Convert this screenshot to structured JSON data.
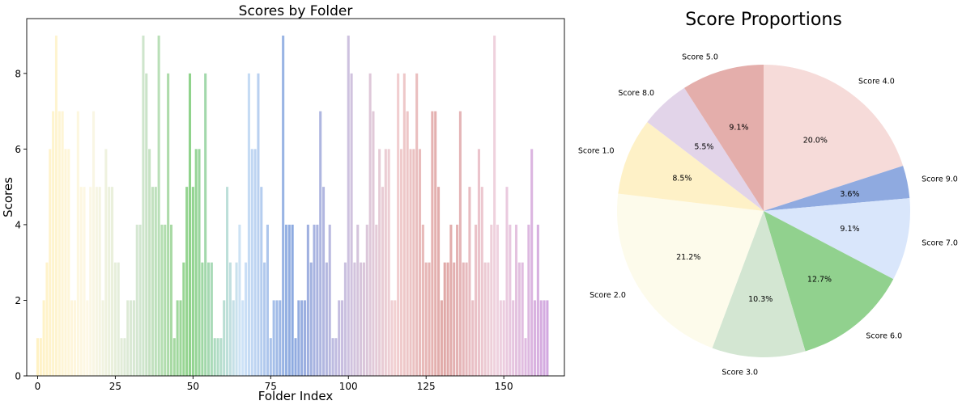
{
  "chart_data": [
    {
      "type": "bar",
      "title": "Scores by Folder",
      "xlabel": "Folder Index",
      "ylabel": "Scores",
      "xlim": [
        -3.5,
        169.5
      ],
      "ylim": [
        0,
        9.45
      ],
      "xticks": [
        0,
        25,
        50,
        75,
        100,
        125,
        150
      ],
      "yticks": [
        0,
        2,
        4,
        6,
        8
      ],
      "grid": false,
      "x_start": 0,
      "values": [
        1,
        1,
        2,
        3,
        6,
        7,
        9,
        7,
        7,
        6,
        6,
        2,
        2,
        7,
        5,
        5,
        2,
        5,
        7,
        5,
        5,
        2,
        6,
        5,
        5,
        3,
        3,
        1,
        1,
        2,
        2,
        2,
        4,
        4,
        9,
        8,
        6,
        5,
        5,
        9,
        4,
        4,
        8,
        4,
        1,
        2,
        2,
        3,
        5,
        8,
        5,
        6,
        6,
        3,
        8,
        3,
        3,
        1,
        1,
        1,
        2,
        5,
        3,
        2,
        3,
        4,
        2,
        3,
        8,
        6,
        6,
        8,
        5,
        3,
        4,
        1,
        2,
        2,
        2,
        9,
        4,
        4,
        4,
        1,
        2,
        2,
        2,
        4,
        3,
        4,
        4,
        7,
        5,
        3,
        4,
        1,
        1,
        2,
        2,
        3,
        9,
        8,
        3,
        4,
        3,
        3,
        4,
        8,
        7,
        4,
        6,
        5,
        6,
        6,
        2,
        2,
        8,
        6,
        8,
        7,
        6,
        6,
        8,
        6,
        4,
        3,
        3,
        7,
        7,
        5,
        2,
        3,
        3,
        4,
        3,
        4,
        7,
        3,
        3,
        5,
        2,
        4,
        6,
        5,
        3,
        3,
        4,
        9,
        4,
        2,
        2,
        5,
        4,
        2,
        4,
        3,
        3,
        1,
        4,
        6,
        2,
        4,
        2,
        2,
        2
      ],
      "color_stops": [
        "#fff2c4",
        "#fdf8e6",
        "#d3e6d1",
        "#8fd38b",
        "#cfe3f8",
        "#8daae0",
        "#c9bfe0",
        "#f2d0d2",
        "#e0a8a6",
        "#f0d3df",
        "#d2a8e0"
      ]
    },
    {
      "type": "pie",
      "title": "Score Proportions",
      "startangle": 90,
      "slices": [
        {
          "label": "Score 4.0",
          "pct_label": "20.0%",
          "value": 20.0,
          "color": "#f6dbd9"
        },
        {
          "label": "Score 9.0",
          "pct_label": "3.6%",
          "value": 3.6,
          "color": "#8faae0"
        },
        {
          "label": "Score 7.0",
          "pct_label": "9.1%",
          "value": 9.1,
          "color": "#d9e6fb"
        },
        {
          "label": "Score 6.0",
          "pct_label": "12.7%",
          "value": 12.7,
          "color": "#91d18e"
        },
        {
          "label": "Score 3.0",
          "pct_label": "10.3%",
          "value": 10.3,
          "color": "#d3e6d2"
        },
        {
          "label": "Score 2.0",
          "pct_label": "21.2%",
          "value": 21.2,
          "color": "#fdfbeb"
        },
        {
          "label": "Score 1.0",
          "pct_label": "8.5%",
          "value": 8.5,
          "color": "#fef1c7"
        },
        {
          "label": "Score 8.0",
          "pct_label": "5.5%",
          "value": 5.5,
          "color": "#e2d4e9"
        },
        {
          "label": "Score 5.0",
          "pct_label": "9.1%",
          "value": 9.1,
          "color": "#e4aeab"
        }
      ]
    }
  ]
}
